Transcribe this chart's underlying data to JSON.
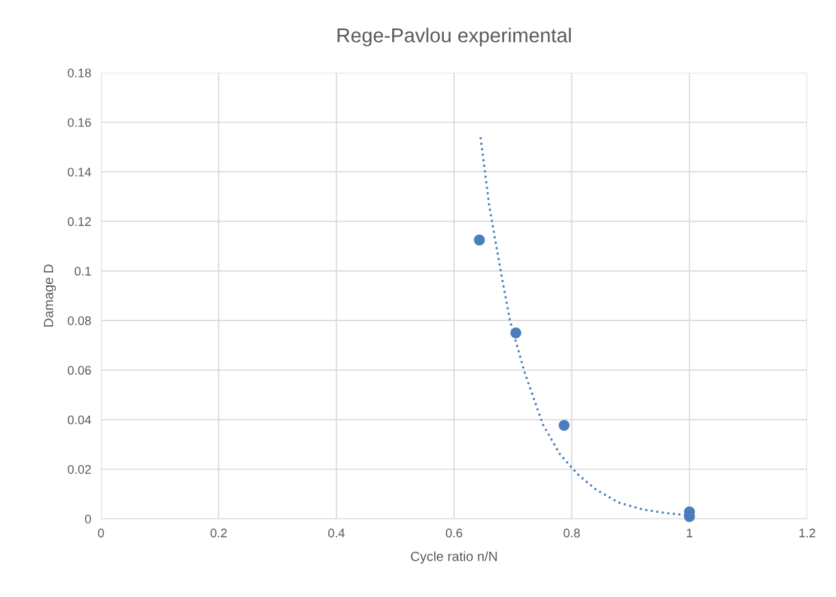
{
  "chart_data": {
    "type": "scatter",
    "title": "Rege-Pavlou experimental",
    "xlabel": "Cycle ratio n/N",
    "ylabel": "Damage D",
    "series": [
      {
        "color": "#4a7ebb",
        "marker": "circle",
        "x": [
          0.643,
          0.705,
          0.787,
          1.0,
          1.0
        ],
        "values": [
          0.1125,
          0.075,
          0.0377,
          0.0028,
          0.0009
        ]
      },
      {
        "type": "line",
        "color": "#4a7ebb",
        "line_style": "dotted",
        "marker": "none",
        "x": [
          0.645,
          0.66,
          0.68,
          0.695,
          0.72,
          0.751,
          0.78,
          0.81,
          0.84,
          0.879,
          0.92,
          0.96,
          1.0
        ],
        "values": [
          0.154,
          0.126,
          0.099,
          0.08,
          0.059,
          0.038,
          0.026,
          0.018,
          0.012,
          0.0066,
          0.0038,
          0.0023,
          0.0014
        ]
      }
    ],
    "xlim": [
      0,
      1.2
    ],
    "xticks": [
      0,
      0.2,
      0.4,
      0.6,
      0.8,
      1,
      1.2
    ],
    "ylim": [
      0,
      0.18
    ],
    "yticks": [
      0,
      0.02,
      0.04,
      0.06,
      0.08,
      0.1,
      0.12,
      0.14,
      0.16,
      0.18
    ],
    "grid": true,
    "legend": false
  }
}
